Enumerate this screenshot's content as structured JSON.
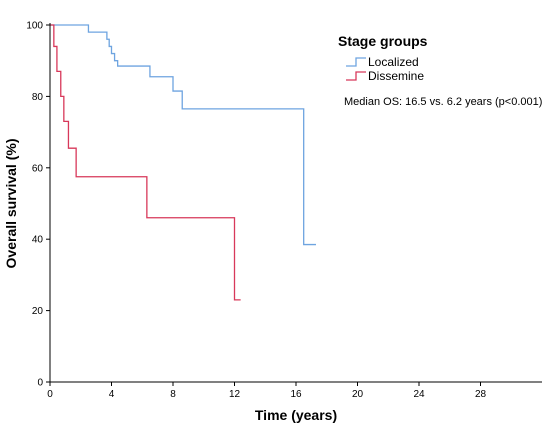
{
  "chart_data": {
    "type": "line",
    "step": true,
    "xlabel": "Time (years)",
    "ylabel": "Overall survival (%)",
    "xlim": [
      0,
      32
    ],
    "ylim": [
      0,
      100
    ],
    "xticks": [
      0,
      4,
      8,
      12,
      16,
      20,
      24,
      28
    ],
    "yticks": [
      0,
      20,
      40,
      60,
      80,
      100
    ],
    "grid": false,
    "legend": {
      "title": "Stage groups",
      "placement": "top-right"
    },
    "annotation": "Median OS: 16.5 vs. 6.2 years (p<0.001)",
    "series": [
      {
        "name": "Localized",
        "color": "#6ea4e0",
        "points": [
          [
            0,
            100
          ],
          [
            2.5,
            98
          ],
          [
            3.7,
            96
          ],
          [
            3.85,
            94
          ],
          [
            4.0,
            92
          ],
          [
            4.2,
            90
          ],
          [
            4.4,
            88.5
          ],
          [
            6.5,
            85.5
          ],
          [
            8.0,
            81.5
          ],
          [
            8.6,
            76.5
          ],
          [
            16.5,
            38.5
          ],
          [
            17.3,
            38.5
          ]
        ]
      },
      {
        "name": "Dissemine",
        "color": "#d8385a",
        "points": [
          [
            0,
            100
          ],
          [
            0.25,
            94
          ],
          [
            0.45,
            87
          ],
          [
            0.7,
            80
          ],
          [
            0.9,
            73
          ],
          [
            1.2,
            65.5
          ],
          [
            1.7,
            57.5
          ],
          [
            6.3,
            46
          ],
          [
            12.0,
            23
          ],
          [
            12.4,
            23
          ]
        ]
      }
    ]
  }
}
